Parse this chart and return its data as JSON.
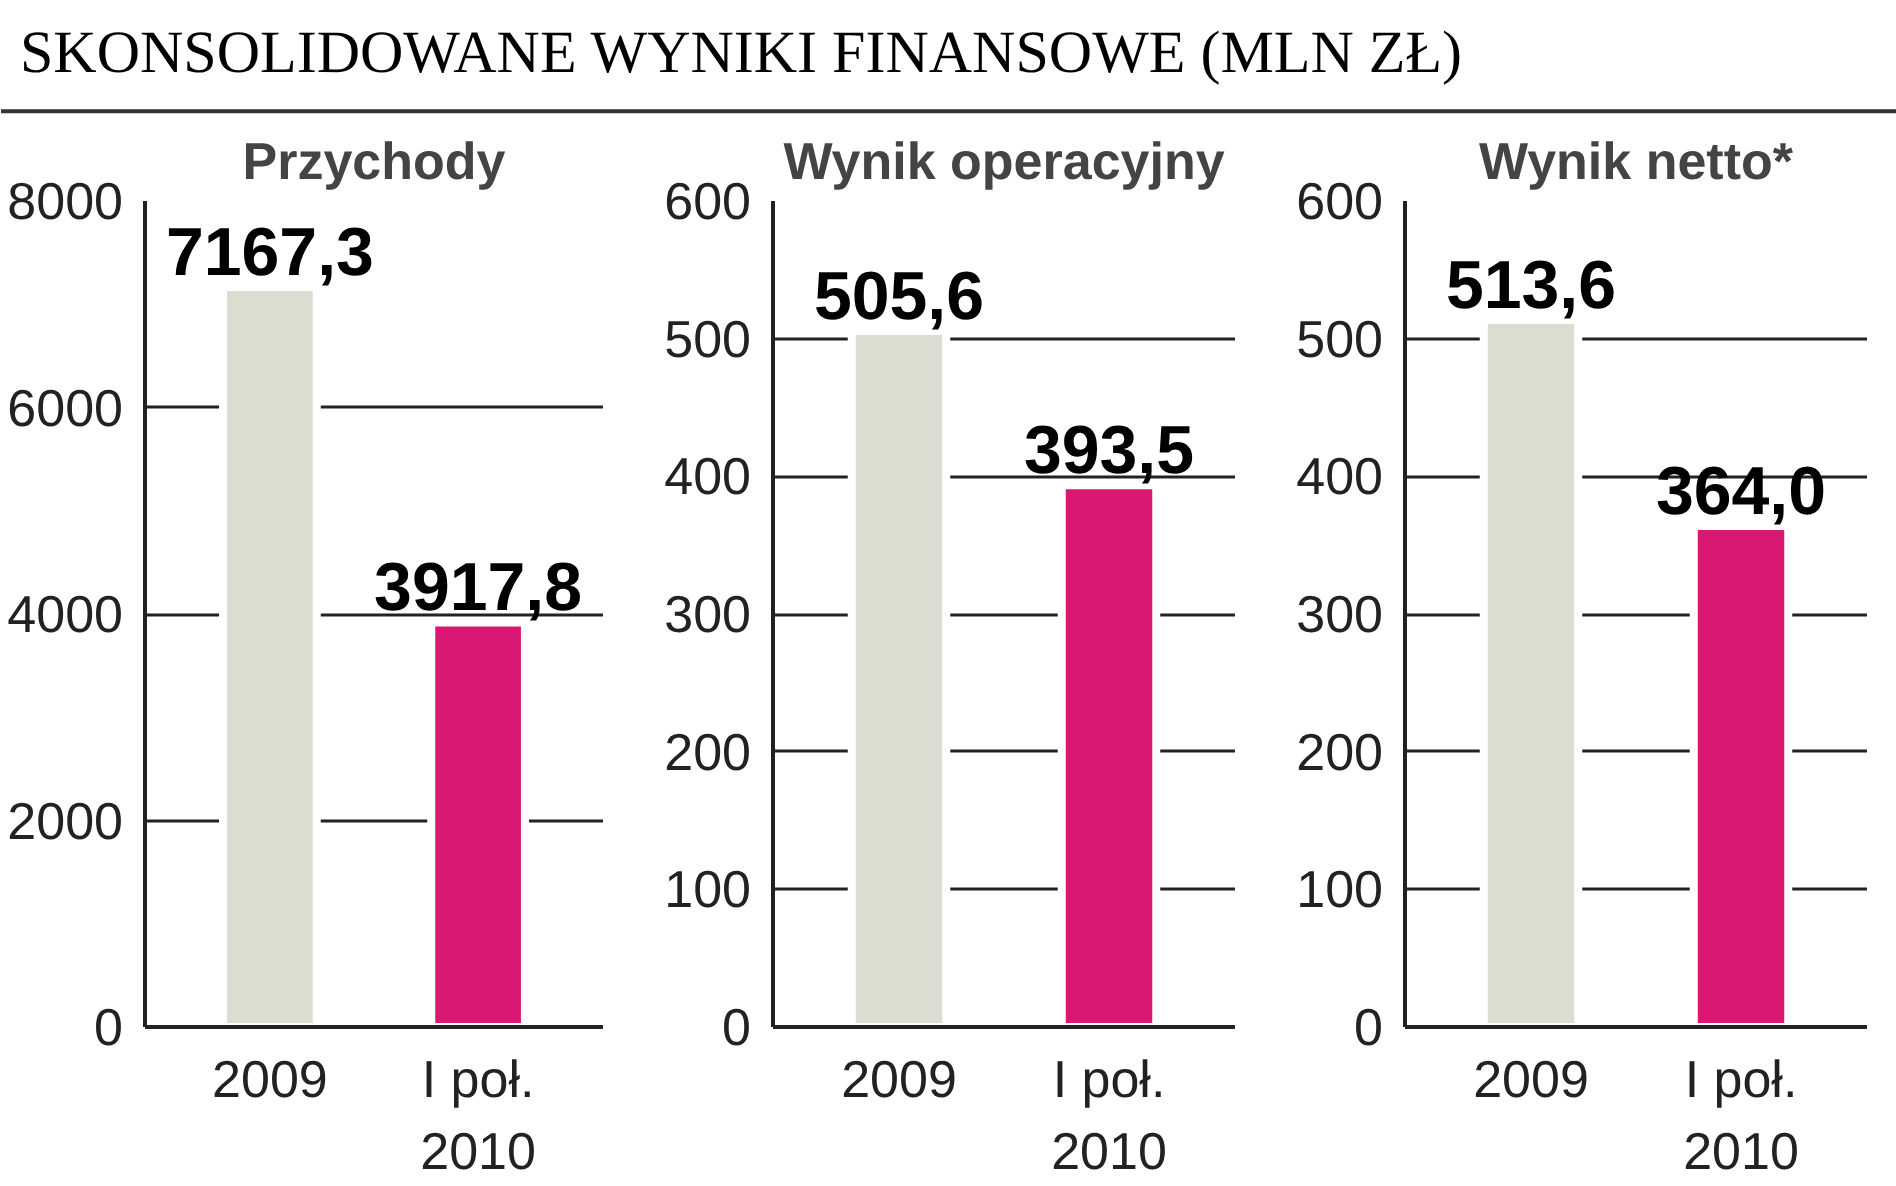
{
  "chart_data": [
    {
      "type": "bar",
      "title": "Przychody",
      "annotations": [
        "SKONSOLIDOWANE WYNIKI FINANSOWE (MLN ZŁ)"
      ],
      "categories": [
        "2009",
        "I poł.\n2010"
      ],
      "values": [
        7167.3,
        3917.8
      ],
      "colors": [
        "#dcdcd0",
        "#d81873"
      ],
      "value_labels": [
        "7167,3",
        "3917,8"
      ],
      "ylim": [
        0,
        8000
      ],
      "yticks": [
        0,
        2000,
        4000,
        6000,
        8000
      ],
      "grid": "y"
    },
    {
      "type": "bar",
      "title": "Wynik operacyjny",
      "categories": [
        "2009",
        "I poł.\n2010"
      ],
      "values": [
        505.6,
        393.5
      ],
      "colors": [
        "#dcdcd0",
        "#d81873"
      ],
      "value_labels": [
        "505,6",
        "393,5"
      ],
      "ylim": [
        0,
        600
      ],
      "yticks": [
        0,
        100,
        200,
        300,
        400,
        500,
        600
      ],
      "grid": "y"
    },
    {
      "type": "bar",
      "title": "Wynik netto*",
      "categories": [
        "2009",
        "I poł.\n2010"
      ],
      "values": [
        513.6,
        364.0
      ],
      "colors": [
        "#dcdcd0",
        "#d81873"
      ],
      "value_labels": [
        "513,6",
        "364,0"
      ],
      "ylim": [
        0,
        600
      ],
      "yticks": [
        0,
        100,
        200,
        300,
        400,
        500,
        600
      ],
      "grid": "y"
    }
  ]
}
